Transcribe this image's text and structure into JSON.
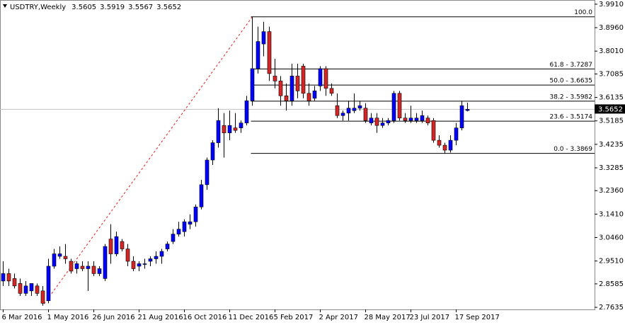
{
  "chart_data": {
    "type": "candlestick",
    "title": "USDTRY,Weekly",
    "categories": [
      "6 Mar 2016",
      null,
      null,
      null,
      null,
      null,
      null,
      null,
      "1 May 2016",
      null,
      null,
      null,
      null,
      null,
      null,
      null,
      "26 Jun 2016",
      null,
      null,
      null,
      null,
      null,
      null,
      null,
      "21 Aug 2016",
      null,
      null,
      null,
      null,
      null,
      null,
      null,
      "16 Oct 2016",
      null,
      null,
      null,
      null,
      null,
      null,
      null,
      "11 Dec 2016",
      null,
      null,
      null,
      null,
      null,
      null,
      null,
      "5 Feb 2017",
      null,
      null,
      null,
      null,
      null,
      null,
      null,
      "2 Apr 2017",
      null,
      null,
      null,
      null,
      null,
      null,
      null,
      "28 May 2017",
      null,
      null,
      null,
      null,
      null,
      null,
      null,
      "23 Jul 2017",
      null,
      null,
      null,
      null,
      null,
      null,
      null,
      "17 Sep 2017",
      null,
      null
    ],
    "open": [
      2.87,
      2.9,
      2.88,
      2.86,
      2.82,
      2.83,
      2.85,
      2.83,
      2.79,
      2.93,
      2.97,
      2.97,
      2.95,
      2.92,
      2.93,
      2.92,
      2.93,
      2.9,
      2.88,
      3.04,
      2.98,
      3.03,
      3.0,
      2.95,
      2.93,
      2.94,
      2.95,
      2.96,
      2.97,
      3.0,
      3.03,
      3.06,
      3.07,
      3.1,
      3.11,
      3.17,
      3.26,
      3.36,
      3.43,
      3.5,
      3.47,
      3.49,
      3.49,
      3.51,
      3.6,
      3.73,
      3.83,
      3.88,
      3.7,
      3.68,
      3.62,
      3.6,
      3.7,
      3.74,
      3.63,
      3.61,
      3.66,
      3.73,
      3.65,
      3.58,
      3.54,
      3.55,
      3.56,
      3.57,
      3.57,
      3.51,
      3.53,
      3.5,
      3.51,
      3.52,
      3.63,
      3.53,
      3.52,
      3.52,
      3.52,
      3.53,
      3.52,
      3.44,
      3.42,
      3.4,
      3.44,
      3.49,
      3.5605
    ],
    "high": [
      2.95,
      2.92,
      2.9,
      2.88,
      2.87,
      2.86,
      2.86,
      2.85,
      2.96,
      3.0,
      3.01,
      3.02,
      2.96,
      2.95,
      2.95,
      2.95,
      2.95,
      2.93,
      3.02,
      3.1,
      3.07,
      3.04,
      3.02,
      2.97,
      2.95,
      2.96,
      2.97,
      2.99,
      3.0,
      3.03,
      3.08,
      3.11,
      3.12,
      3.14,
      3.18,
      3.28,
      3.37,
      3.44,
      3.57,
      3.55,
      3.56,
      3.55,
      3.52,
      3.62,
      3.94,
      3.9,
      3.92,
      3.9,
      3.77,
      3.7,
      3.67,
      3.75,
      3.75,
      3.75,
      3.67,
      3.66,
      3.74,
      3.74,
      3.67,
      3.63,
      3.56,
      3.6,
      3.63,
      3.6,
      3.59,
      3.55,
      3.55,
      3.53,
      3.53,
      3.64,
      3.64,
      3.55,
      3.58,
      3.55,
      3.56,
      3.54,
      3.53,
      3.46,
      3.43,
      3.46,
      3.51,
      3.6,
      3.5919
    ],
    "low": [
      2.85,
      2.85,
      2.84,
      2.81,
      2.81,
      2.81,
      2.81,
      2.77,
      2.78,
      2.92,
      2.96,
      2.94,
      2.9,
      2.9,
      2.91,
      2.83,
      2.89,
      2.89,
      2.87,
      2.94,
      2.97,
      2.99,
      2.93,
      2.91,
      2.91,
      2.92,
      2.93,
      2.94,
      2.94,
      2.99,
      3.02,
      3.05,
      3.05,
      3.08,
      3.09,
      3.16,
      3.24,
      3.34,
      3.41,
      3.37,
      3.44,
      3.47,
      3.47,
      3.5,
      3.58,
      3.71,
      3.78,
      3.68,
      3.65,
      3.58,
      3.56,
      3.58,
      3.61,
      3.61,
      3.58,
      3.6,
      3.64,
      3.62,
      3.62,
      3.53,
      3.52,
      3.52,
      3.55,
      3.56,
      3.51,
      3.5,
      3.47,
      3.49,
      3.5,
      3.51,
      3.52,
      3.51,
      3.51,
      3.51,
      3.51,
      3.5,
      3.43,
      3.41,
      3.3869,
      3.39,
      3.42,
      3.48,
      3.5567
    ],
    "close": [
      2.9,
      2.87,
      2.85,
      2.82,
      2.85,
      2.86,
      2.82,
      2.78,
      2.93,
      2.98,
      2.98,
      2.96,
      2.91,
      2.94,
      2.92,
      2.93,
      2.9,
      2.92,
      3.01,
      2.98,
      3.05,
      3.0,
      2.95,
      2.92,
      2.94,
      2.94,
      2.96,
      2.97,
      2.99,
      3.02,
      3.06,
      3.08,
      3.11,
      3.11,
      3.17,
      3.26,
      3.36,
      3.43,
      3.52,
      3.47,
      3.5,
      3.48,
      3.51,
      3.6,
      3.73,
      3.84,
      3.88,
      3.71,
      3.68,
      3.62,
      3.6,
      3.7,
      3.64,
      3.63,
      3.6,
      3.64,
      3.73,
      3.65,
      3.63,
      3.54,
      3.55,
      3.57,
      3.57,
      3.58,
      3.52,
      3.53,
      3.5,
      3.51,
      3.52,
      3.63,
      3.53,
      3.52,
      3.53,
      3.53,
      3.54,
      3.51,
      3.44,
      3.42,
      3.4,
      3.44,
      3.49,
      3.58,
      3.5652
    ],
    "up_color": "#0000ff",
    "down_color": "#d42626",
    "ylim": [
      2.755,
      4.008
    ],
    "yticks": [
      {
        "value": 3.991,
        "label": "3.9910"
      },
      {
        "value": 3.896,
        "label": "3.8960"
      },
      {
        "value": 3.801,
        "label": "3.8010"
      },
      {
        "value": 3.7085,
        "label": "3.7085"
      },
      {
        "value": 3.6135,
        "label": "3.6135"
      },
      {
        "value": 3.5185,
        "label": "3.5185"
      },
      {
        "value": 3.4235,
        "label": "3.4235"
      },
      {
        "value": 3.3285,
        "label": "3.3285"
      },
      {
        "value": 3.236,
        "label": "3.2360"
      },
      {
        "value": 3.141,
        "label": "3.1410"
      },
      {
        "value": 3.046,
        "label": "3.0460"
      },
      {
        "value": 2.951,
        "label": "2.9510"
      },
      {
        "value": 2.8585,
        "label": "2.8585"
      },
      {
        "value": 2.7635,
        "label": "2.7635"
      }
    ],
    "fibonacci": [
      {
        "label": "100.0",
        "value": 3.94
      },
      {
        "label": "61.8 - 3.7287",
        "value": 3.7287
      },
      {
        "label": "50.0 - 3.6635",
        "value": 3.6635
      },
      {
        "label": "38.2 - 3.5982",
        "value": 3.5982
      },
      {
        "label": "23.6 - 3.5174",
        "value": 3.5174
      },
      {
        "label": "0.0 - 3.3869",
        "value": 3.3869
      }
    ]
  }
}
